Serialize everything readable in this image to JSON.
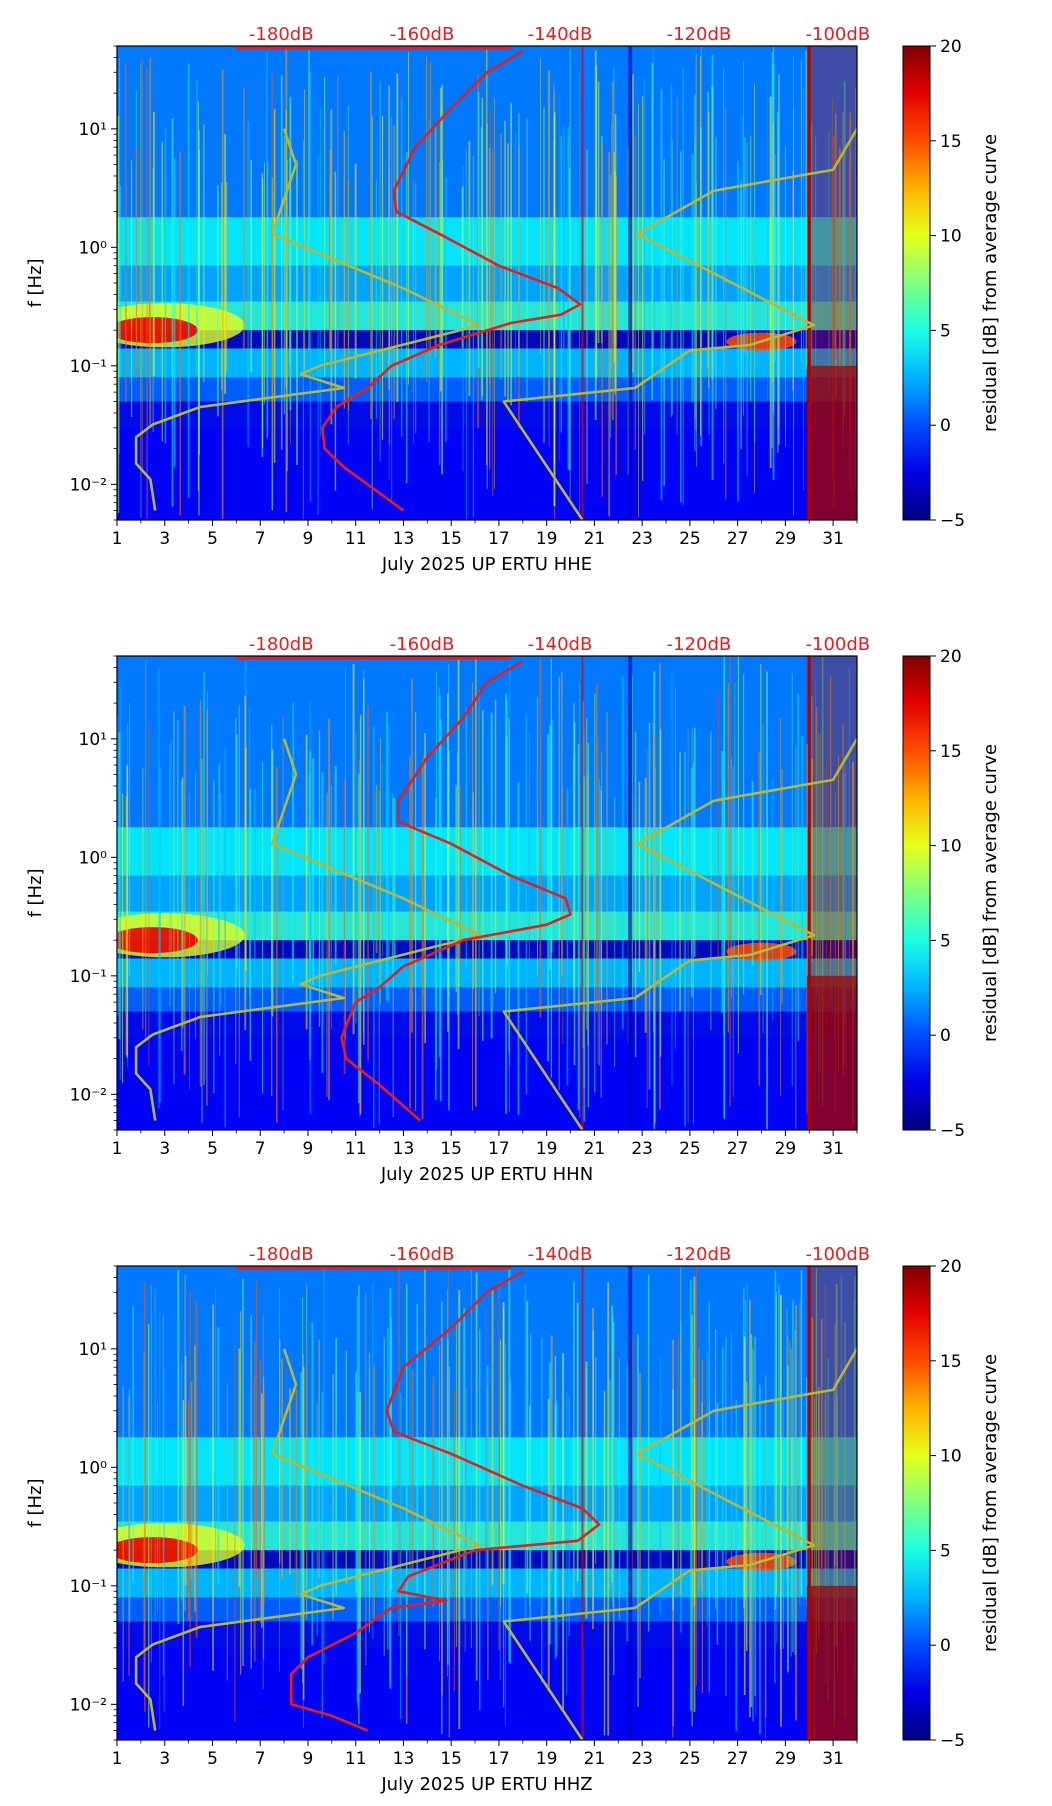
{
  "chart_data": [
    {
      "type": "heatmap",
      "channel": "HHE",
      "xlabel": "July 2025 UP ERTU  HHE",
      "ylabel": "f [Hz]",
      "x_ticks": [
        "1",
        "3",
        "5",
        "7",
        "9",
        "11",
        "13",
        "15",
        "17",
        "19",
        "21",
        "23",
        "25",
        "27",
        "29",
        "31"
      ],
      "x_range": [
        1,
        32
      ],
      "y_ticks": [
        "10⁻²",
        "10⁻¹",
        "10⁰",
        "10¹"
      ],
      "y_range_hz": [
        0.005,
        50
      ],
      "db_top_labels": [
        "-180dB",
        "-160dB",
        "-140dB",
        "-120dB",
        "-100dB"
      ],
      "colorbar": {
        "label": "residual [dB] from average curve",
        "ticks": [
          "−5",
          "0",
          "5",
          "10",
          "15",
          "20"
        ],
        "range": [
          -5,
          20
        ]
      },
      "series": [
        {
          "name": "reference model (yellow)",
          "color": "#b5b83a",
          "points": [
            [
              8.0,
              10
            ],
            [
              8.5,
              5
            ],
            [
              7.5,
              1.3
            ],
            [
              13,
              0.45
            ],
            [
              16.2,
              0.22
            ],
            [
              9.5,
              0.1
            ],
            [
              8.7,
              0.085
            ],
            [
              10.5,
              0.065
            ],
            [
              4.5,
              0.045
            ],
            [
              2.5,
              0.032
            ],
            [
              1.8,
              0.025
            ],
            [
              1.8,
              0.015
            ],
            [
              2.4,
              0.011
            ],
            [
              2.6,
              0.006
            ]
          ]
        },
        {
          "name": "reference model right (yellow)",
          "color": "#b5b83a",
          "points": [
            [
              32,
              10
            ],
            [
              31,
              4.5
            ],
            [
              29.5,
              4
            ],
            [
              26,
              3
            ],
            [
              22.8,
              1.3
            ],
            [
              30.2,
              0.22
            ],
            [
              27.5,
              0.15
            ],
            [
              25,
              0.135
            ],
            [
              22.7,
              0.065
            ],
            [
              17.2,
              0.05
            ],
            [
              20.5,
              0.005
            ]
          ]
        },
        {
          "name": "average PSD (red)",
          "color": "#e61e1e",
          "points": [
            [
              18,
              45
            ],
            [
              16.5,
              30
            ],
            [
              15,
              15
            ],
            [
              13.5,
              7
            ],
            [
              12.6,
              3
            ],
            [
              12.7,
              2
            ],
            [
              14.5,
              1.3
            ],
            [
              17,
              0.7
            ],
            [
              19.5,
              0.45
            ],
            [
              20.4,
              0.33
            ],
            [
              19.6,
              0.27
            ],
            [
              17.5,
              0.23
            ],
            [
              14.5,
              0.15
            ],
            [
              12.5,
              0.1
            ],
            [
              11.5,
              0.065
            ],
            [
              10.2,
              0.045
            ],
            [
              9.6,
              0.03
            ],
            [
              9.7,
              0.02
            ],
            [
              10.5,
              0.014
            ],
            [
              13,
              0.006
            ]
          ]
        }
      ]
    },
    {
      "type": "heatmap",
      "channel": "HHN",
      "xlabel": "July 2025 UP ERTU  HHN",
      "ylabel": "f [Hz]",
      "x_ticks": [
        "1",
        "3",
        "5",
        "7",
        "9",
        "11",
        "13",
        "15",
        "17",
        "19",
        "21",
        "23",
        "25",
        "27",
        "29",
        "31"
      ],
      "x_range": [
        1,
        32
      ],
      "y_ticks": [
        "10⁻²",
        "10⁻¹",
        "10⁰",
        "10¹"
      ],
      "y_range_hz": [
        0.005,
        50
      ],
      "db_top_labels": [
        "-180dB",
        "-160dB",
        "-140dB",
        "-120dB",
        "-100dB"
      ],
      "colorbar": {
        "label": "residual [dB] from average curve",
        "ticks": [
          "−5",
          "0",
          "5",
          "10",
          "15",
          "20"
        ],
        "range": [
          -5,
          20
        ]
      },
      "series": [
        {
          "name": "reference model (yellow)",
          "color": "#b5b83a",
          "points": [
            [
              8.0,
              10
            ],
            [
              8.5,
              5
            ],
            [
              7.5,
              1.3
            ],
            [
              13,
              0.45
            ],
            [
              16.2,
              0.22
            ],
            [
              9.5,
              0.1
            ],
            [
              8.7,
              0.085
            ],
            [
              10.5,
              0.065
            ],
            [
              4.5,
              0.045
            ],
            [
              2.5,
              0.032
            ],
            [
              1.8,
              0.025
            ],
            [
              1.8,
              0.015
            ],
            [
              2.4,
              0.011
            ],
            [
              2.6,
              0.006
            ]
          ]
        },
        {
          "name": "reference model right (yellow)",
          "color": "#b5b83a",
          "points": [
            [
              32,
              10
            ],
            [
              31,
              4.5
            ],
            [
              29.5,
              4
            ],
            [
              26,
              3
            ],
            [
              22.8,
              1.3
            ],
            [
              30.2,
              0.22
            ],
            [
              27.5,
              0.15
            ],
            [
              25,
              0.135
            ],
            [
              22.7,
              0.065
            ],
            [
              17.2,
              0.05
            ],
            [
              20.5,
              0.005
            ]
          ]
        },
        {
          "name": "average PSD (red)",
          "color": "#e61e1e",
          "points": [
            [
              18,
              45
            ],
            [
              16.5,
              30
            ],
            [
              15.5,
              15
            ],
            [
              14,
              7
            ],
            [
              12.8,
              3
            ],
            [
              12.8,
              2
            ],
            [
              15,
              1.3
            ],
            [
              17.5,
              0.7
            ],
            [
              19.8,
              0.45
            ],
            [
              20,
              0.33
            ],
            [
              19,
              0.27
            ],
            [
              15.5,
              0.2
            ],
            [
              13,
              0.12
            ],
            [
              12,
              0.08
            ],
            [
              11,
              0.06
            ],
            [
              10.4,
              0.03
            ],
            [
              10.6,
              0.02
            ],
            [
              12,
              0.012
            ],
            [
              13.7,
              0.006
            ]
          ]
        }
      ]
    },
    {
      "type": "heatmap",
      "channel": "HHZ",
      "xlabel": "July 2025 UP ERTU  HHZ",
      "ylabel": "f [Hz]",
      "x_ticks": [
        "1",
        "3",
        "5",
        "7",
        "9",
        "11",
        "13",
        "15",
        "17",
        "19",
        "21",
        "23",
        "25",
        "27",
        "29",
        "31"
      ],
      "x_range": [
        1,
        32
      ],
      "y_ticks": [
        "10⁻²",
        "10⁻¹",
        "10⁰",
        "10¹"
      ],
      "y_range_hz": [
        0.005,
        50
      ],
      "db_top_labels": [
        "-180dB",
        "-160dB",
        "-140dB",
        "-120dB",
        "-100dB"
      ],
      "colorbar": {
        "label": "residual [dB] from average curve",
        "ticks": [
          "−5",
          "0",
          "5",
          "10",
          "15",
          "20"
        ],
        "range": [
          -5,
          20
        ]
      },
      "series": [
        {
          "name": "reference model (yellow)",
          "color": "#b5b83a",
          "points": [
            [
              8.0,
              10
            ],
            [
              8.5,
              5
            ],
            [
              7.5,
              1.3
            ],
            [
              13,
              0.45
            ],
            [
              16.2,
              0.22
            ],
            [
              9.5,
              0.1
            ],
            [
              8.7,
              0.085
            ],
            [
              10.5,
              0.065
            ],
            [
              4.5,
              0.045
            ],
            [
              2.5,
              0.032
            ],
            [
              1.8,
              0.025
            ],
            [
              1.8,
              0.015
            ],
            [
              2.4,
              0.011
            ],
            [
              2.6,
              0.006
            ]
          ]
        },
        {
          "name": "reference model right (yellow)",
          "color": "#b5b83a",
          "points": [
            [
              32,
              10
            ],
            [
              31,
              4.5
            ],
            [
              29.5,
              4
            ],
            [
              26,
              3
            ],
            [
              22.8,
              1.3
            ],
            [
              30.2,
              0.22
            ],
            [
              27.5,
              0.15
            ],
            [
              25,
              0.135
            ],
            [
              22.7,
              0.065
            ],
            [
              17.2,
              0.05
            ],
            [
              20.5,
              0.005
            ]
          ]
        },
        {
          "name": "average PSD (red)",
          "color": "#e61e1e",
          "points": [
            [
              18,
              45
            ],
            [
              16.5,
              30
            ],
            [
              15,
              15
            ],
            [
              13,
              7
            ],
            [
              12.3,
              3
            ],
            [
              12.6,
              2
            ],
            [
              15,
              1.3
            ],
            [
              18,
              0.7
            ],
            [
              20.5,
              0.45
            ],
            [
              21.2,
              0.33
            ],
            [
              20.3,
              0.24
            ],
            [
              16,
              0.2
            ],
            [
              13.2,
              0.12
            ],
            [
              12.8,
              0.09
            ],
            [
              14.8,
              0.075
            ],
            [
              12.5,
              0.065
            ],
            [
              11,
              0.04
            ],
            [
              9,
              0.025
            ],
            [
              8.3,
              0.018
            ],
            [
              8.3,
              0.01
            ],
            [
              10,
              0.008
            ],
            [
              11.5,
              0.006
            ]
          ]
        }
      ]
    }
  ]
}
